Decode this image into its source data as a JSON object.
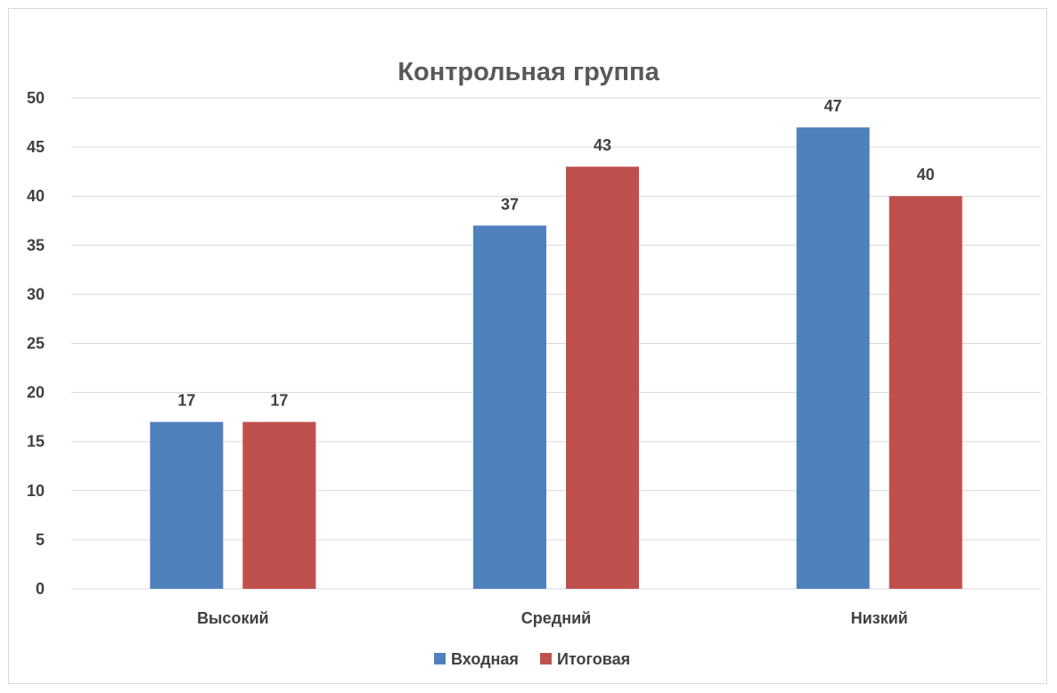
{
  "chart_data": {
    "type": "bar",
    "title": "Контрольная группа",
    "categories": [
      "Высокий",
      "Средний",
      "Низкий"
    ],
    "series": [
      {
        "name": "Входная",
        "values": [
          17,
          37,
          47
        ],
        "color": "#4f81bd"
      },
      {
        "name": "Итоговая",
        "values": [
          17,
          43,
          40
        ],
        "color": "#c0504d"
      }
    ],
    "ylim": [
      0,
      50
    ],
    "yticks": [
      0,
      5,
      10,
      15,
      20,
      25,
      30,
      35,
      40,
      45,
      50
    ],
    "grid": true,
    "data_labels": true,
    "legend_position": "bottom",
    "xlabel": "",
    "ylabel": ""
  }
}
